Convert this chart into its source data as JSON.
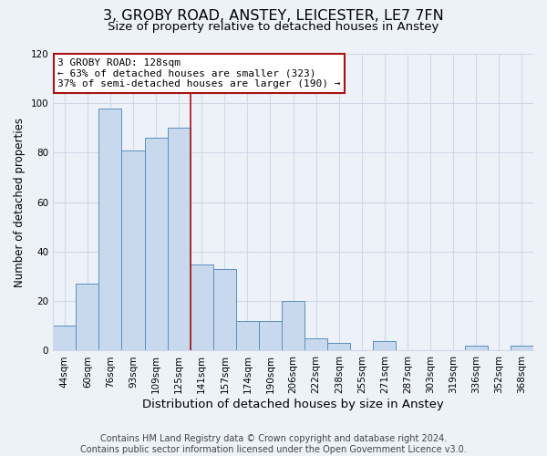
{
  "title": "3, GROBY ROAD, ANSTEY, LEICESTER, LE7 7FN",
  "subtitle": "Size of property relative to detached houses in Anstey",
  "xlabel": "Distribution of detached houses by size in Anstey",
  "ylabel": "Number of detached properties",
  "categories": [
    "44sqm",
    "60sqm",
    "76sqm",
    "93sqm",
    "109sqm",
    "125sqm",
    "141sqm",
    "157sqm",
    "174sqm",
    "190sqm",
    "206sqm",
    "222sqm",
    "238sqm",
    "255sqm",
    "271sqm",
    "287sqm",
    "303sqm",
    "319sqm",
    "336sqm",
    "352sqm",
    "368sqm"
  ],
  "values": [
    10,
    27,
    98,
    81,
    86,
    90,
    35,
    33,
    12,
    12,
    20,
    5,
    3,
    0,
    4,
    0,
    0,
    0,
    2,
    0,
    2
  ],
  "bar_color": "#c9d9ed",
  "bar_edge_color": "#5a8fc0",
  "grid_color": "#d0d8e8",
  "background_color": "#edf2f9",
  "vline_x_index": 5,
  "vline_color": "#aa1111",
  "annotation_title": "3 GROBY ROAD: 128sqm",
  "annotation_line1": "← 63% of detached houses are smaller (323)",
  "annotation_line2": "37% of semi-detached houses are larger (190) →",
  "annotation_box_color": "#ffffff",
  "annotation_border_color": "#aa1111",
  "footer_line1": "Contains HM Land Registry data © Crown copyright and database right 2024.",
  "footer_line2": "Contains public sector information licensed under the Open Government Licence v3.0.",
  "ylim": [
    0,
    120
  ],
  "title_fontsize": 11.5,
  "subtitle_fontsize": 9.5,
  "xlabel_fontsize": 9.5,
  "ylabel_fontsize": 8.5,
  "tick_fontsize": 7.5,
  "footer_fontsize": 7.0,
  "annotation_fontsize": 8.0
}
